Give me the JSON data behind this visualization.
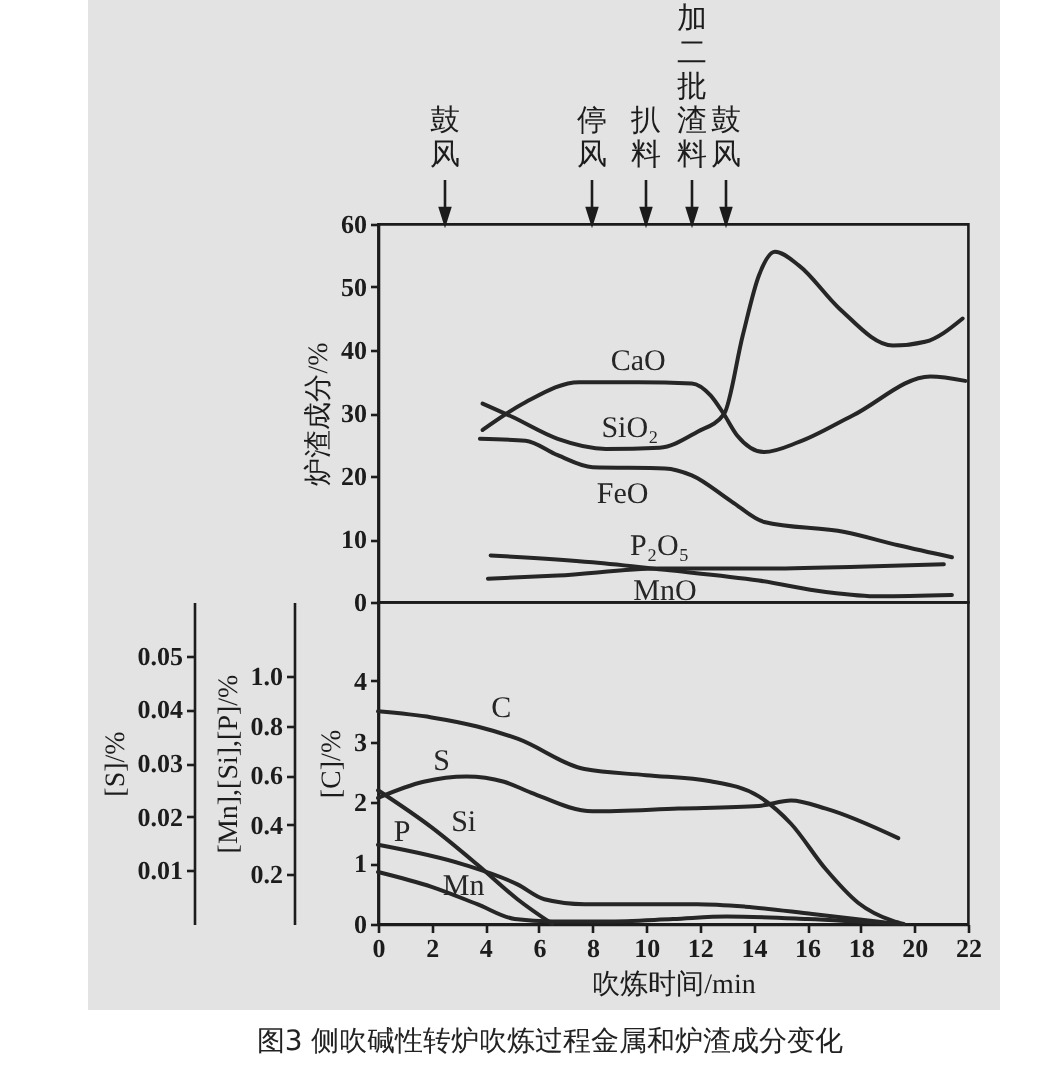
{
  "chart_data": [
    {
      "type": "line",
      "ylabel": "炉渣成分/%",
      "xlim": [
        0,
        22
      ],
      "ylim": [
        0,
        60
      ],
      "yticks": [
        0,
        10,
        20,
        30,
        40,
        50,
        60
      ],
      "tick_labels": "y",
      "annotations": [
        "鼓风",
        "停风",
        "扒料",
        "加二批渣料",
        "鼓风"
      ],
      "series": [
        {
          "name": "CaO",
          "color": "#262626",
          "x": [
            3.9,
            5.5,
            7.5,
            9.7,
            11.7,
            12.4,
            12.9,
            13.4,
            14.4,
            15.7,
            17.7,
            20.6,
            21.9
          ],
          "values": [
            27.3,
            31.7,
            34.9,
            34.9,
            34.7,
            32.8,
            29.8,
            26.4,
            23.8,
            25.4,
            29.6,
            35.8,
            35.1
          ]
        },
        {
          "name": "SiO₂",
          "color": "#262626",
          "x": [
            3.9,
            5.0,
            6.7,
            8.5,
            10.5,
            11.9,
            12.9,
            13.6,
            14.2,
            14.8,
            15.7,
            17.2,
            19.2,
            20.4,
            21.8
          ],
          "values": [
            31.5,
            29.4,
            25.9,
            24.3,
            24.5,
            27.0,
            29.8,
            42.3,
            51.8,
            55.6,
            53.4,
            46.6,
            40.7,
            41.3,
            45.0
          ]
        },
        {
          "name": "FeO",
          "color": "#262626",
          "x": [
            3.8,
            5.5,
            6.7,
            8.0,
            10.7,
            11.7,
            13.2,
            14.4,
            17.4,
            19.4,
            21.4
          ],
          "values": [
            25.9,
            25.6,
            23.3,
            21.4,
            21.2,
            20.1,
            15.9,
            12.7,
            11.1,
            9.0,
            7.1
          ]
        },
        {
          "name": "P₂O₅",
          "color": "#262626",
          "x": [
            4.1,
            6.7,
            10.5,
            14.2,
            17.9,
            21.1
          ],
          "values": [
            3.7,
            4.2,
            5.3,
            5.3,
            5.6,
            6.0
          ]
        },
        {
          "name": "MnO",
          "color": "#262626",
          "x": [
            4.2,
            8.0,
            10.7,
            14.2,
            16.7,
            18.7,
            21.4
          ],
          "values": [
            7.4,
            6.3,
            5.1,
            3.4,
            1.6,
            0.9,
            1.1
          ]
        }
      ]
    },
    {
      "type": "line",
      "xlabel": "吹炼时间/min",
      "ylabel": "[C]/%",
      "y2label": "[Mn],[Si],[P]/%",
      "y3label": "[S]/%",
      "annotations": [
        "图3 侧吹碱性转炉吹炼过程金属和炉渣成分变化"
      ],
      "xlim": [
        0,
        22
      ],
      "xticks": [
        0,
        2,
        4,
        6,
        8,
        10,
        12,
        14,
        16,
        18,
        20,
        22
      ],
      "ylim": [
        0,
        5.3
      ],
      "yticks": [
        0,
        1,
        2,
        3,
        4
      ],
      "y2lim": [
        0,
        1.3
      ],
      "y2ticks": [
        0.2,
        0.4,
        0.6,
        0.8,
        {
          "value": 1,
          "label": "1.0"
        }
      ],
      "y3lim": [
        0,
        0.06
      ],
      "y3ticks": [
        0.01,
        0.02,
        0.03,
        0.04,
        0.05
      ],
      "series": [
        {
          "name": "C",
          "color": "#262626",
          "x": [
            0,
            2.0,
            3.7,
            5.2,
            7.7,
            10.0,
            12.4,
            14.2,
            15.4,
            16.7,
            17.9,
            19.2,
            19.6
          ],
          "values": [
            3.5,
            3.4,
            3.25,
            3.05,
            2.55,
            2.45,
            2.35,
            2.1,
            1.65,
            0.9,
            0.35,
            0.05,
            0
          ]
        },
        {
          "name": "S",
          "color": "#262626",
          "axis": "y3",
          "x": [
            0,
            1.7,
            3.3,
            4.7,
            5.7,
            8.0,
            11.2,
            14.2,
            15.4,
            16.7,
            19.4
          ],
          "values": [
            0.0235,
            0.0265,
            0.0275,
            0.0265,
            0.0245,
            0.021,
            0.0215,
            0.022,
            0.023,
            0.0215,
            0.016
          ]
        },
        {
          "name": "Si",
          "color": "#262626",
          "axis": "y2",
          "x": [
            0,
            2.0,
            3.7,
            5.2,
            6.5
          ],
          "values": [
            0.54,
            0.39,
            0.24,
            0.1,
            0
          ]
        },
        {
          "name": "P",
          "color": "#262626",
          "axis": "y2",
          "x": [
            0,
            3.2,
            5.2,
            6.2,
            7.7,
            11.9,
            13.7,
            16.2,
            19.4
          ],
          "values": [
            0.32,
            0.24,
            0.16,
            0.1,
            0.08,
            0.08,
            0.07,
            0.04,
            0
          ]
        },
        {
          "name": "Mn",
          "color": "#262626",
          "axis": "y2",
          "x": [
            0,
            2.0,
            3.7,
            5.1,
            6.5,
            8.5,
            11,
            13,
            16,
            19.4
          ],
          "values": [
            0.21,
            0.15,
            0.08,
            0.02,
            0.01,
            0.01,
            0.02,
            0.03,
            0.02,
            0
          ]
        }
      ]
    }
  ]
}
